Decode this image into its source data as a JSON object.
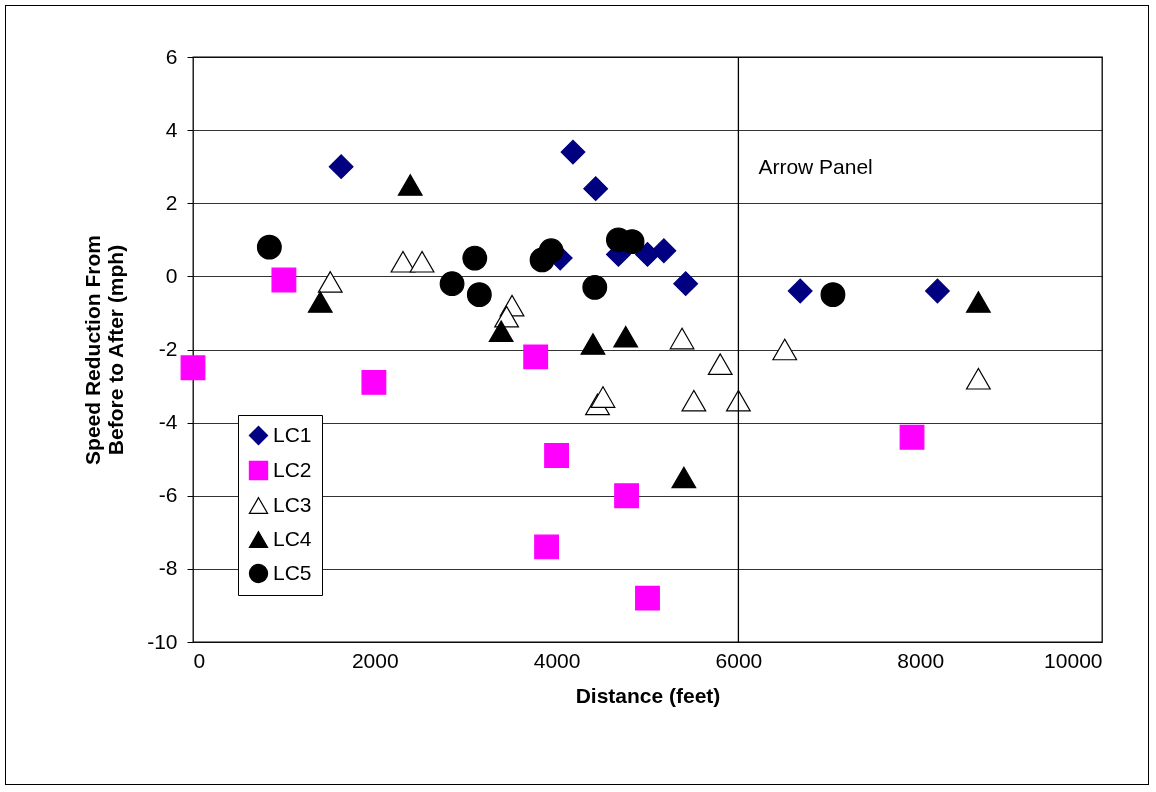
{
  "chart_data": {
    "type": "scatter",
    "xlabel": "Distance (feet)",
    "ylabel": "Speed Reduction From\nBefore to After (mph)",
    "xlim": [
      0,
      10000
    ],
    "xticks": [
      0,
      2000,
      4000,
      6000,
      8000,
      10000
    ],
    "ylim": [
      -10,
      6
    ],
    "yticks": [
      -10,
      -8,
      -6,
      -4,
      -2,
      0,
      2,
      4,
      6
    ],
    "grid": "y",
    "legend": "bottom left",
    "ref_lines": [
      {
        "axis": "x",
        "value": 6000,
        "label": "Arrow Panel",
        "color": "#000000"
      }
    ],
    "series": [
      {
        "name": "LC1",
        "color": "#000080",
        "marker": "diamond",
        "x": [
          1630,
          4180,
          4430,
          4040,
          4680,
          5000,
          5180,
          5420,
          6680,
          8190
        ],
        "values": [
          3.0,
          3.4,
          2.4,
          0.5,
          0.6,
          0.6,
          0.7,
          -0.2,
          -0.4,
          -0.4
        ]
      },
      {
        "name": "LC2",
        "color": "#ff00ff",
        "marker": "square",
        "x": [
          0,
          1000,
          1990,
          3770,
          4000,
          3890,
          4770,
          5000,
          7910
        ],
        "values": [
          -2.5,
          -0.1,
          -2.9,
          -2.2,
          -4.9,
          -7.4,
          -6.0,
          -8.8,
          -4.4
        ]
      },
      {
        "name": "LC3",
        "color": "#ffffff",
        "marker": "triangle",
        "x": [
          1510,
          2310,
          2520,
          3510,
          3450,
          4450,
          4510,
          5380,
          5800,
          5510,
          6000,
          6510,
          8640
        ],
        "values": [
          -0.15,
          0.4,
          0.4,
          -0.8,
          -1.1,
          -3.5,
          -3.3,
          -1.7,
          -2.4,
          -3.4,
          -3.4,
          -2.0,
          -2.8
        ]
      },
      {
        "name": "LC4",
        "color": "#000000",
        "marker": "triangle",
        "x": [
          2390,
          1400,
          3390,
          4400,
          4760,
          5400,
          8640
        ],
        "values": [
          2.5,
          -0.7,
          -1.5,
          -1.85,
          -1.65,
          -5.5,
          -0.7
        ]
      },
      {
        "name": "LC5",
        "color": "#000000",
        "marker": "circle",
        "x": [
          840,
          2850,
          3100,
          3150,
          3840,
          3940,
          4420,
          4680,
          4830,
          7040
        ],
        "values": [
          0.8,
          -0.2,
          0.5,
          -0.5,
          0.45,
          0.7,
          -0.3,
          1.0,
          0.95,
          -0.5
        ]
      }
    ]
  }
}
